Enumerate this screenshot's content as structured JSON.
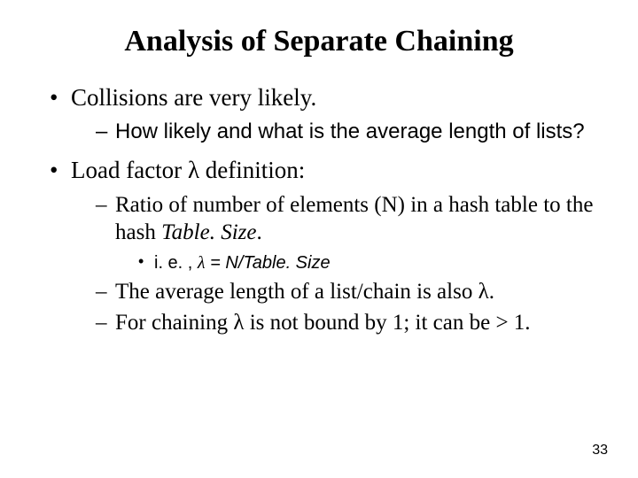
{
  "title": "Analysis of Separate Chaining",
  "b1": {
    "text": "Collisions are very likely.",
    "sub1": "How likely and what is the average length of lists?"
  },
  "b2": {
    "prefix": "Load factor ",
    "lambda": "λ",
    "suffix": " definition:",
    "sub1_a": "Ratio of number of elements (N) in a hash table to the hash ",
    "sub1_b": "Table. Size",
    "sub1_c": ".",
    "sub1_bullet_a": "i. e. ,    ",
    "sub1_bullet_lambda": "λ",
    "sub1_bullet_b": " = N/Table. Size",
    "sub2_a": "The average length of a list/chain is also ",
    "sub2_lambda": "λ",
    "sub2_b": ".",
    "sub3_a": "For chaining ",
    "sub3_lambda": "λ",
    "sub3_b": " is not bound by 1; it can be > 1."
  },
  "page_number": "33",
  "colors": {
    "background": "#ffffff",
    "text": "#000000"
  }
}
